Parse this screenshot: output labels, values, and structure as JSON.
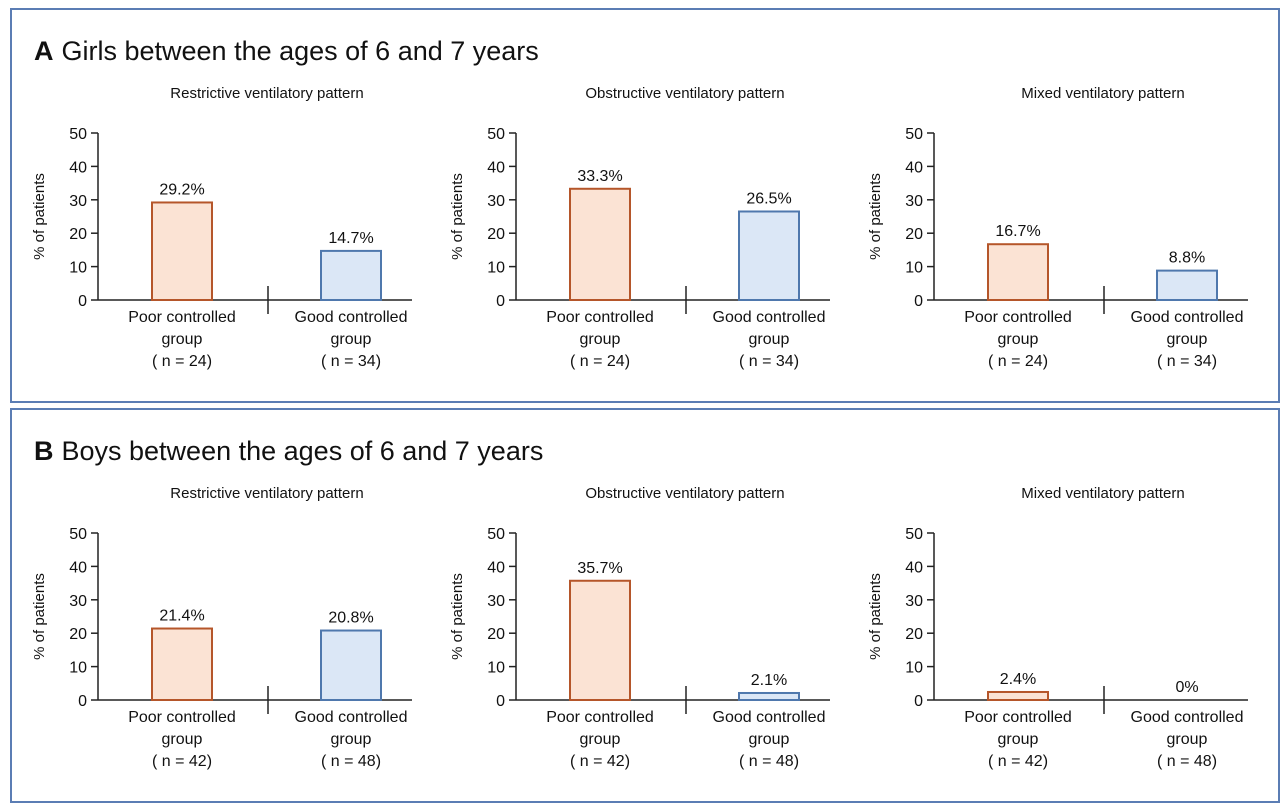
{
  "panels": [
    {
      "letter": "A",
      "title": "Girls between the ages of 6 and 7 years",
      "chart_data": [
        {
          "type": "bar",
          "title": "Restrictive ventilatory pattern",
          "ylabel": "% of patients",
          "ylim": [
            0,
            50
          ],
          "yticks": [
            "0",
            "10",
            "20",
            "30",
            "40",
            "50"
          ],
          "categories": [
            [
              "Poor controlled",
              "group",
              "( n = 24)"
            ],
            [
              "Good controlled",
              "group",
              "( n = 34)"
            ]
          ],
          "values": [
            29.2,
            14.7
          ],
          "data_labels": [
            "29.2%",
            "14.7%"
          ]
        },
        {
          "type": "bar",
          "title": "Obstructive ventilatory pattern",
          "ylabel": "% of patients",
          "ylim": [
            0,
            50
          ],
          "yticks": [
            "0",
            "10",
            "20",
            "30",
            "40",
            "50"
          ],
          "categories": [
            [
              "Poor controlled",
              "group",
              "( n = 24)"
            ],
            [
              "Good controlled",
              "group",
              "( n = 34)"
            ]
          ],
          "values": [
            33.3,
            26.5
          ],
          "data_labels": [
            "33.3%",
            "26.5%"
          ]
        },
        {
          "type": "bar",
          "title": "Mixed ventilatory pattern",
          "ylabel": "% of patients",
          "ylim": [
            0,
            50
          ],
          "yticks": [
            "0",
            "10",
            "20",
            "30",
            "40",
            "50"
          ],
          "categories": [
            [
              "Poor controlled",
              "group",
              "( n = 24)"
            ],
            [
              "Good controlled",
              "group",
              "( n = 34)"
            ]
          ],
          "values": [
            16.7,
            8.8
          ],
          "data_labels": [
            "16.7%",
            "8.8%"
          ]
        }
      ]
    },
    {
      "letter": "B",
      "title": "Boys between the ages of 6 and 7 years",
      "chart_data": [
        {
          "type": "bar",
          "title": "Restrictive ventilatory pattern",
          "ylabel": "% of patients",
          "ylim": [
            0,
            50
          ],
          "yticks": [
            "0",
            "10",
            "20",
            "30",
            "40",
            "50"
          ],
          "categories": [
            [
              "Poor controlled",
              "group",
              "( n = 42)"
            ],
            [
              "Good controlled",
              "group",
              "( n = 48)"
            ]
          ],
          "values": [
            21.4,
            20.8
          ],
          "data_labels": [
            "21.4%",
            "20.8%"
          ]
        },
        {
          "type": "bar",
          "title": "Obstructive ventilatory pattern",
          "ylabel": "% of patients",
          "ylim": [
            0,
            50
          ],
          "yticks": [
            "0",
            "10",
            "20",
            "30",
            "40",
            "50"
          ],
          "categories": [
            [
              "Poor controlled",
              "group",
              "( n = 42)"
            ],
            [
              "Good controlled",
              "group",
              "( n = 48)"
            ]
          ],
          "values": [
            35.7,
            2.1
          ],
          "data_labels": [
            "35.7%",
            "2.1%"
          ]
        },
        {
          "type": "bar",
          "title": "Mixed ventilatory pattern",
          "ylabel": "% of patients",
          "ylim": [
            0,
            50
          ],
          "yticks": [
            "0",
            "10",
            "20",
            "30",
            "40",
            "50"
          ],
          "categories": [
            [
              "Poor controlled",
              "group",
              "( n = 42)"
            ],
            [
              "Good controlled",
              "group",
              "( n = 48)"
            ]
          ],
          "values": [
            2.4,
            0
          ],
          "data_labels": [
            "2.4%",
            "0%"
          ]
        }
      ]
    }
  ],
  "colors": {
    "poor_fill": "#fbe3d4",
    "poor_stroke": "#b5562a",
    "good_fill": "#dbe7f6",
    "good_stroke": "#4f78ad",
    "panel_border": "#5b7db4"
  }
}
